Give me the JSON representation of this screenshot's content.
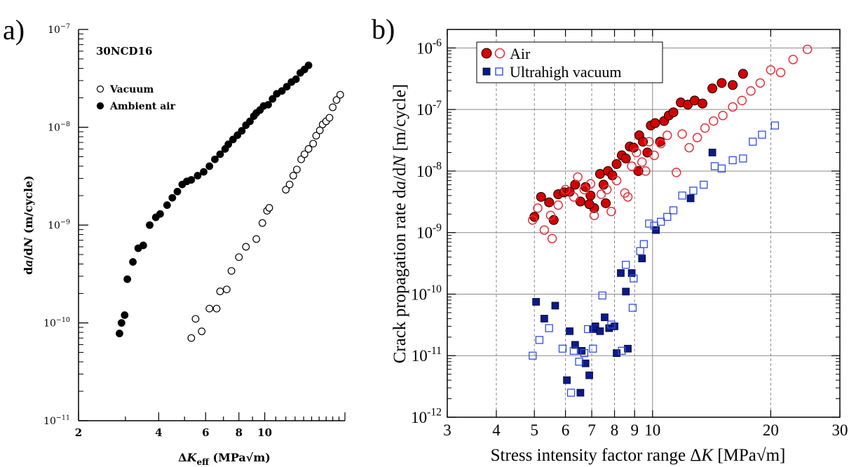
{
  "panel_a": {
    "letter": "a)",
    "annotation": "30NCD16",
    "y_ticks": [
      {
        "value": 1e-07,
        "mant": "10",
        "exp": "−7"
      },
      {
        "value": 1e-08,
        "mant": "10",
        "exp": "−8"
      },
      {
        "value": 1e-09,
        "mant": "10",
        "exp": "−9"
      },
      {
        "value": 1e-10,
        "mant": "10",
        "exp": "−10"
      },
      {
        "value": 1e-11,
        "mant": "10",
        "exp": "−11"
      }
    ],
    "x_ticks": [
      {
        "value": 2,
        "label": "2"
      },
      {
        "value": 4,
        "label": "4"
      },
      {
        "value": 6,
        "label": "6"
      },
      {
        "value": 8,
        "label": "8"
      },
      {
        "value": 10,
        "label": "10"
      }
    ],
    "ylabel": {
      "pre": "d",
      "it1": "a",
      "mid": "/d",
      "it2": "N",
      "post": " (m/cycle)"
    },
    "xlabel": {
      "pre": "Δ",
      "it": "K",
      "sub": "eff",
      "post": " (MPa",
      "root": "√m",
      "close": ")"
    }
  },
  "panel_b": {
    "letter": "b)",
    "y_ticks": [
      {
        "value": 1e-06,
        "mant": "10",
        "exp": "-6"
      },
      {
        "value": 1e-07,
        "mant": "10",
        "exp": "-7"
      },
      {
        "value": 1e-08,
        "mant": "10",
        "exp": "-8"
      },
      {
        "value": 1e-09,
        "mant": "10",
        "exp": "-9"
      },
      {
        "value": 1e-10,
        "mant": "10",
        "exp": "-10"
      },
      {
        "value": 1e-11,
        "mant": "10",
        "exp": "-11"
      },
      {
        "value": 1e-12,
        "mant": "10",
        "exp": "-12"
      }
    ],
    "x_ticks": [
      {
        "value": 3,
        "label": "3"
      },
      {
        "value": 4,
        "label": "4"
      },
      {
        "value": 5,
        "label": "5"
      },
      {
        "value": 6,
        "label": "6"
      },
      {
        "value": 7,
        "label": "7"
      },
      {
        "value": 8,
        "label": "8"
      },
      {
        "value": 9,
        "label": "9"
      },
      {
        "value": 10,
        "label": "10"
      },
      {
        "value": 20,
        "label": "20"
      },
      {
        "value": 30,
        "label": "30"
      }
    ],
    "ylabel": {
      "pre": "Crack propagation rate d",
      "it1": "a",
      "mid": "/d",
      "it2": "N",
      "post": " [m/cycle]"
    },
    "xlabel": {
      "pre": "Stress intensity factor range Δ",
      "it": "K",
      "post": " [MPa√m]"
    }
  },
  "colors": {
    "red_fill": "#d40000",
    "red_line": "#e8323c",
    "blue_fill": "#0a1a8c",
    "blue_line": "#2f4fe0",
    "grid": "#888888"
  },
  "chart_data": [
    {
      "type": "scatter",
      "panel": "a",
      "annotation": "30NCD16",
      "xlabel": "ΔK_eff (MPa√m)",
      "ylabel": "da/dN (m/cycle)",
      "x_scale": "log",
      "y_scale": "log",
      "xlim": [
        2,
        20
      ],
      "ylim": [
        1e-11,
        1e-07
      ],
      "grid": false,
      "legend": {
        "position": "top-left",
        "entries": [
          "Vacuum",
          "Ambient air"
        ]
      },
      "series": [
        {
          "name": "Vacuum",
          "marker": "open-circle",
          "points": [
            [
              5.3,
              7e-11
            ],
            [
              5.5,
              1.1e-10
            ],
            [
              5.8,
              8.2e-11
            ],
            [
              6.2,
              1.4e-10
            ],
            [
              6.6,
              1.4e-10
            ],
            [
              6.8,
              2.1e-10
            ],
            [
              7.2,
              2.2e-10
            ],
            [
              7.5,
              3.4e-10
            ],
            [
              8.0,
              4.7e-10
            ],
            [
              8.5,
              6e-10
            ],
            [
              9.3,
              7.2e-10
            ],
            [
              9.8,
              1.05e-09
            ],
            [
              10.2,
              1.4e-09
            ],
            [
              10.4,
              1.5e-09
            ],
            [
              12.0,
              2.3e-09
            ],
            [
              12.4,
              2.6e-09
            ],
            [
              12.8,
              3.2e-09
            ],
            [
              13.2,
              3.7e-09
            ],
            [
              13.7,
              4.7e-09
            ],
            [
              14.1,
              5.3e-09
            ],
            [
              14.6,
              6e-09
            ],
            [
              15.2,
              6.8e-09
            ],
            [
              15.6,
              8.2e-09
            ],
            [
              16.1,
              9.3e-09
            ],
            [
              16.5,
              1.07e-08
            ],
            [
              17.0,
              1.15e-08
            ],
            [
              17.5,
              1.25e-08
            ],
            [
              18.0,
              1.6e-08
            ],
            [
              18.6,
              1.9e-08
            ],
            [
              19.2,
              2.15e-08
            ]
          ]
        },
        {
          "name": "Ambient air",
          "marker": "filled-circle",
          "points": [
            [
              2.85,
              7.8e-11
            ],
            [
              2.9,
              1e-10
            ],
            [
              2.98,
              1.2e-10
            ],
            [
              3.05,
              2.8e-10
            ],
            [
              3.2,
              4.2e-10
            ],
            [
              3.35,
              5.8e-10
            ],
            [
              3.5,
              6.2e-10
            ],
            [
              3.7,
              1e-09
            ],
            [
              3.9,
              1.2e-09
            ],
            [
              4.05,
              1.3e-09
            ],
            [
              4.3,
              1.6e-09
            ],
            [
              4.5,
              1.9e-09
            ],
            [
              4.7,
              2.2e-09
            ],
            [
              4.9,
              2.6e-09
            ],
            [
              5.1,
              2.8e-09
            ],
            [
              5.3,
              2.9e-09
            ],
            [
              5.6,
              3.2e-09
            ],
            [
              5.9,
              3.5e-09
            ],
            [
              6.2,
              4e-09
            ],
            [
              6.5,
              4.7e-09
            ],
            [
              6.8,
              5.3e-09
            ],
            [
              7.1,
              6e-09
            ],
            [
              7.3,
              6.7e-09
            ],
            [
              7.6,
              7.5e-09
            ],
            [
              7.9,
              8.3e-09
            ],
            [
              8.2,
              9.2e-09
            ],
            [
              8.5,
              1.05e-08
            ],
            [
              8.8,
              1.15e-08
            ],
            [
              9.1,
              1.3e-08
            ],
            [
              9.3,
              1.4e-08
            ],
            [
              9.6,
              1.5e-08
            ],
            [
              9.9,
              1.65e-08
            ],
            [
              10.3,
              1.7e-08
            ],
            [
              10.7,
              1.95e-08
            ],
            [
              11.1,
              2.2e-08
            ],
            [
              11.6,
              2.35e-08
            ],
            [
              12.1,
              2.6e-08
            ],
            [
              12.6,
              2.9e-08
            ],
            [
              13.1,
              3.1e-08
            ],
            [
              13.6,
              3.6e-08
            ],
            [
              14.1,
              3.9e-08
            ],
            [
              14.6,
              4.3e-08
            ]
          ]
        }
      ]
    },
    {
      "type": "scatter",
      "panel": "b",
      "xlabel": "Stress intensity factor range ΔK [MPa√m]",
      "ylabel": "Crack propagation rate da/dN [m/cycle]",
      "x_scale": "log",
      "y_scale": "log",
      "xlim": [
        3,
        30
      ],
      "ylim": [
        1e-12,
        2e-06
      ],
      "grid": true,
      "legend": {
        "position": "top-left",
        "entries": [
          "Air",
          "Ultrahigh vacuum"
        ]
      },
      "series": [
        {
          "name": "Air",
          "marker": "filled-circle",
          "color": "#d40000",
          "points": [
            [
              5.0,
              1.8e-09
            ],
            [
              5.2,
              3.8e-09
            ],
            [
              5.45,
              3.1e-09
            ],
            [
              5.6,
              1.6e-09
            ],
            [
              5.75,
              4.2e-09
            ],
            [
              5.95,
              4.5e-09
            ],
            [
              6.15,
              4.6e-09
            ],
            [
              6.35,
              6e-09
            ],
            [
              6.55,
              3.2e-09
            ],
            [
              6.75,
              5.5e-09
            ],
            [
              6.95,
              4e-09
            ],
            [
              7.1,
              2.5e-09
            ],
            [
              7.35,
              9e-09
            ],
            [
              7.5,
              6e-09
            ],
            [
              7.7,
              1e-08
            ],
            [
              7.9,
              8.5e-09
            ],
            [
              8.1,
              1.3e-08
            ],
            [
              8.35,
              1.8e-08
            ],
            [
              8.55,
              1.6e-08
            ],
            [
              8.75,
              2.5e-08
            ],
            [
              8.95,
              2.4e-08
            ],
            [
              9.25,
              3.8e-08
            ],
            [
              9.45,
              3e-08
            ],
            [
              9.7,
              2e-08
            ],
            [
              9.9,
              5.5e-08
            ],
            [
              10.15,
              6e-08
            ],
            [
              10.45,
              3e-08
            ],
            [
              10.7,
              6.5e-08
            ],
            [
              11.0,
              8e-08
            ],
            [
              11.3,
              9e-08
            ],
            [
              11.8,
              1.3e-07
            ],
            [
              12.3,
              1.2e-07
            ],
            [
              12.8,
              1.4e-07
            ],
            [
              13.4,
              1.25e-07
            ],
            [
              14.2,
              2.2e-07
            ],
            [
              15.0,
              2.7e-07
            ],
            [
              16.0,
              2.5e-07
            ],
            [
              17.0,
              3.8e-07
            ],
            [
              9.2,
              1e-08
            ],
            [
              7.6,
              3e-09
            ],
            [
              6.9,
              2.9e-09
            ]
          ]
        },
        {
          "name": "Air",
          "marker": "open-circle",
          "color": "#e8323c",
          "points": [
            [
              4.95,
              1.6e-09
            ],
            [
              5.1,
              2.5e-09
            ],
            [
              5.3,
              1.1e-09
            ],
            [
              5.5,
              1.9e-09
            ],
            [
              5.55,
              8e-10
            ],
            [
              5.75,
              2.8e-09
            ],
            [
              6.0,
              5e-09
            ],
            [
              6.3,
              3.8e-09
            ],
            [
              6.45,
              8e-09
            ],
            [
              6.7,
              5e-09
            ],
            [
              6.95,
              6.2e-09
            ],
            [
              7.1,
              1.9e-09
            ],
            [
              7.4,
              4.2e-09
            ],
            [
              7.65,
              5e-09
            ],
            [
              7.85,
              2.2e-09
            ],
            [
              8.1,
              7e-09
            ],
            [
              8.5,
              4.4e-09
            ],
            [
              8.65,
              3.8e-09
            ],
            [
              8.85,
              1.2e-08
            ],
            [
              9.1,
              2e-08
            ],
            [
              9.4,
              1.4e-08
            ],
            [
              9.6,
              1e-08
            ],
            [
              9.8,
              3e-08
            ],
            [
              10.1,
              1.8e-08
            ],
            [
              10.5,
              2.8e-08
            ],
            [
              10.9,
              3.8e-08
            ],
            [
              11.5,
              9.5e-09
            ],
            [
              11.9,
              4e-08
            ],
            [
              12.4,
              2.4e-08
            ],
            [
              13.0,
              3.5e-08
            ],
            [
              13.6,
              5e-08
            ],
            [
              14.3,
              6.5e-08
            ],
            [
              15.1,
              8e-08
            ],
            [
              16.0,
              1.1e-07
            ],
            [
              16.9,
              1.4e-07
            ],
            [
              17.8,
              2e-07
            ],
            [
              18.8,
              2.7e-07
            ],
            [
              20.0,
              4.4e-07
            ],
            [
              21.2,
              4e-07
            ],
            [
              22.8,
              6.5e-07
            ],
            [
              24.8,
              9.5e-07
            ]
          ]
        },
        {
          "name": "Ultrahigh vacuum",
          "marker": "filled-square",
          "color": "#0a1a8c",
          "points": [
            [
              5.05,
              7.5e-11
            ],
            [
              5.3,
              4e-11
            ],
            [
              5.65,
              6.5e-11
            ],
            [
              6.05,
              4e-12
            ],
            [
              6.15,
              2.5e-11
            ],
            [
              6.35,
              1.5e-11
            ],
            [
              6.55,
              2.5e-12
            ],
            [
              6.6,
              1.2e-11
            ],
            [
              6.75,
              7.5e-12
            ],
            [
              6.9,
              4.8e-12
            ],
            [
              7.05,
              2.7e-11
            ],
            [
              7.15,
              3e-11
            ],
            [
              7.35,
              2.5e-11
            ],
            [
              7.55,
              4.2e-11
            ],
            [
              7.75,
              2.8e-11
            ],
            [
              8.0,
              3e-11
            ],
            [
              8.1,
              1.1e-11
            ],
            [
              8.3,
              2.2e-10
            ],
            [
              8.55,
              1.1e-10
            ],
            [
              8.65,
              1.3e-11
            ],
            [
              8.85,
              2.2e-10
            ],
            [
              9.4,
              3.8e-10
            ],
            [
              10.2,
              1.1e-09
            ],
            [
              12.5,
              3.6e-09
            ],
            [
              14.2,
              2e-08
            ]
          ]
        },
        {
          "name": "Ultrahigh vacuum",
          "marker": "open-square",
          "color": "#2f4fe0",
          "points": [
            [
              4.95,
              1e-11
            ],
            [
              5.15,
              1.8e-11
            ],
            [
              5.45,
              2.8e-11
            ],
            [
              5.9,
              1.3e-11
            ],
            [
              6.2,
              2.5e-12
            ],
            [
              6.3,
              1.2e-11
            ],
            [
              6.5,
              8e-12
            ],
            [
              6.7,
              1.1e-11
            ],
            [
              6.85,
              2.7e-11
            ],
            [
              7.05,
              1.3e-11
            ],
            [
              7.45,
              9.5e-11
            ],
            [
              7.85,
              3.2e-11
            ],
            [
              8.35,
              1.2e-11
            ],
            [
              8.55,
              3e-10
            ],
            [
              8.95,
              1.8e-10
            ],
            [
              8.9,
              6e-11
            ],
            [
              9.3,
              5e-10
            ],
            [
              9.5,
              6.5e-10
            ],
            [
              9.8,
              1.4e-09
            ],
            [
              10.1,
              1.3e-09
            ],
            [
              10.5,
              1.5e-09
            ],
            [
              10.9,
              1.8e-09
            ],
            [
              11.3,
              2.3e-09
            ],
            [
              11.9,
              4e-09
            ],
            [
              12.7,
              4.8e-09
            ],
            [
              13.5,
              6e-09
            ],
            [
              14.4,
              1.2e-08
            ],
            [
              15.0,
              1.1e-08
            ],
            [
              16.0,
              1.5e-08
            ],
            [
              17.0,
              1.6e-08
            ],
            [
              18.0,
              3e-08
            ],
            [
              19.0,
              3.9e-08
            ],
            [
              20.5,
              5.5e-08
            ]
          ]
        }
      ]
    }
  ]
}
